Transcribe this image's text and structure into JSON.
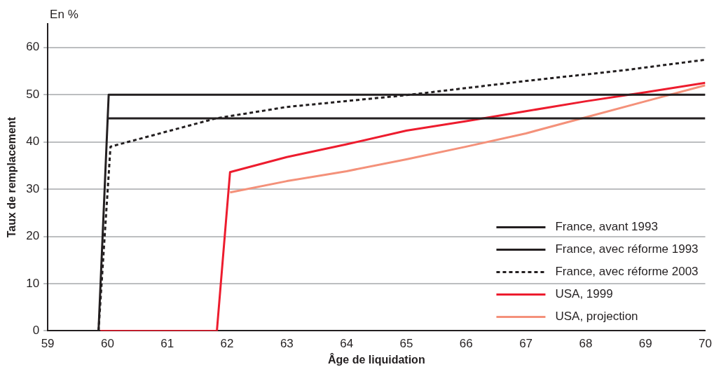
{
  "chart_data": {
    "type": "line",
    "xlabel": "Âge de liquidation",
    "ylabel": "Taux de remplacement",
    "annotations": [
      "En %"
    ],
    "xlim": [
      59,
      70
    ],
    "xticks": [
      59,
      60,
      61,
      62,
      63,
      64,
      65,
      66,
      67,
      68,
      69,
      70
    ],
    "ylim": [
      0,
      65
    ],
    "yticks": [
      0,
      10,
      20,
      30,
      40,
      50,
      60
    ],
    "grid": "y",
    "legend": "bottom right",
    "marker": "none",
    "series": [
      {
        "name": "France, avant 1993",
        "color": "#231f20",
        "line_style": "solid",
        "x": [
          59,
          59.85,
          60.02,
          70
        ],
        "values": [
          0,
          0,
          50,
          50
        ]
      },
      {
        "name": "France, avec réforme 1993",
        "color": "#231f20",
        "line_style": "solid",
        "x": [
          60,
          70
        ],
        "values": [
          45,
          45
        ]
      },
      {
        "name": "France, avec réforme 2003",
        "color": "#231f20",
        "line_style": "dotted",
        "x": [
          59.85,
          60.05,
          61.82,
          63,
          65,
          67,
          68.66,
          70
        ],
        "values": [
          0,
          39,
          45,
          47.4,
          49.9,
          52.9,
          55.2,
          57.4
        ]
      },
      {
        "name": "USA, 1999",
        "color": "#ed1c2e",
        "line_style": "solid",
        "x": [
          59.88,
          61.83,
          62.05,
          63,
          64,
          65,
          66,
          67,
          68,
          69,
          70
        ],
        "values": [
          0,
          0,
          33.6,
          36.8,
          39.5,
          42.4,
          44.4,
          46.5,
          48.6,
          50.5,
          52.5
        ]
      },
      {
        "name": "USA, projection",
        "color": "#f4917a",
        "line_style": "solid",
        "x": [
          62.05,
          63,
          64,
          65,
          66,
          67,
          68,
          69,
          70
        ],
        "values": [
          29.3,
          31.7,
          33.8,
          36.3,
          39,
          41.8,
          45.2,
          48.6,
          52
        ]
      }
    ]
  }
}
